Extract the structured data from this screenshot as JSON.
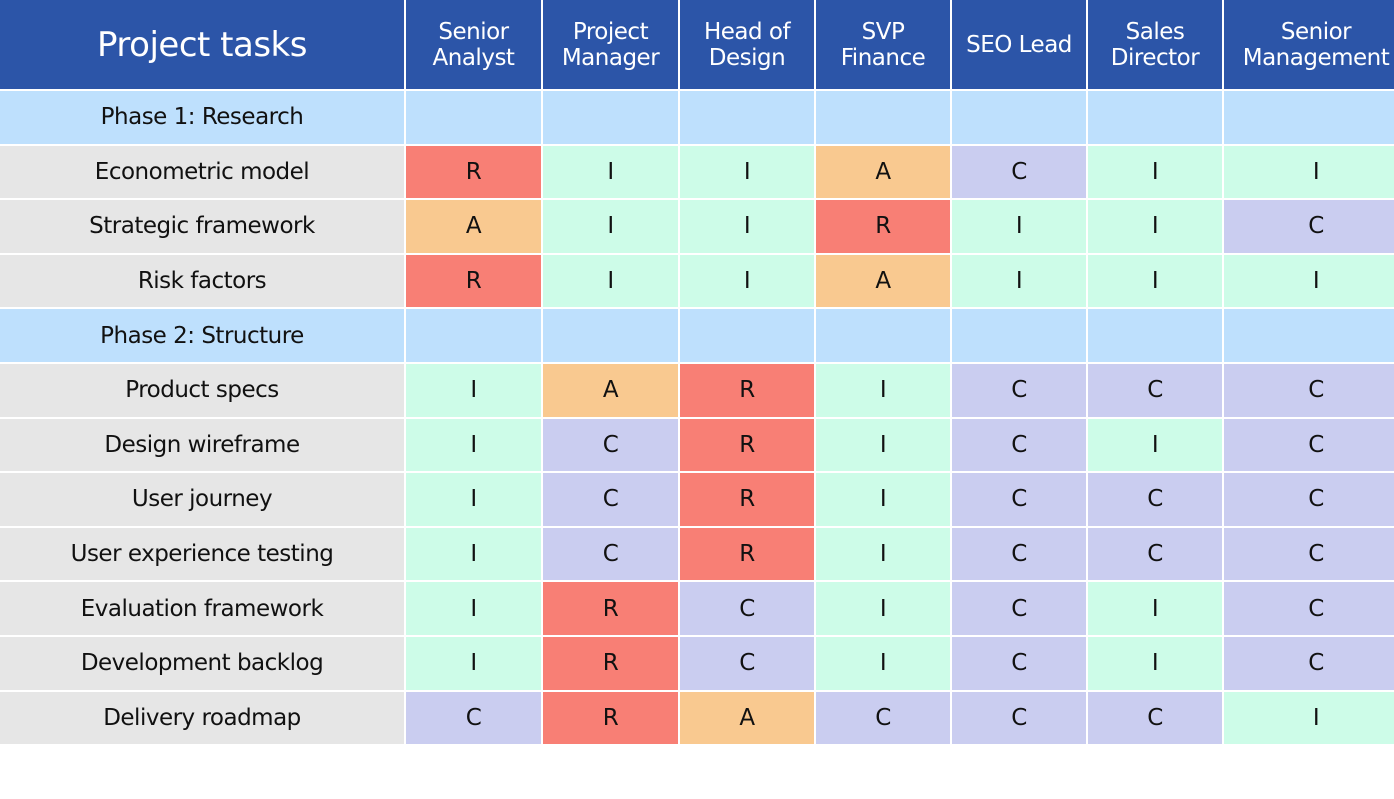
{
  "title": "Project tasks",
  "roles": [
    "Senior Analyst",
    "Project Manager",
    "Head of Design",
    "SVP Finance",
    "SEO Lead",
    "Sales Director",
    "Senior Management"
  ],
  "colors": {
    "header": "#2c55a8",
    "phase": "#bee0fd",
    "task": "#e6e6e6",
    "R": "#f87f75",
    "A": "#f9c990",
    "I": "#cdfce8",
    "C": "#cacdf0"
  },
  "rows": [
    {
      "phase": "Phase 1: Research"
    },
    {
      "task": "Econometric model",
      "values": [
        "R",
        "I",
        "I",
        "A",
        "C",
        "I",
        "I"
      ]
    },
    {
      "task": "Strategic framework",
      "values": [
        "A",
        "I",
        "I",
        "R",
        "I",
        "I",
        "C"
      ]
    },
    {
      "task": "Risk factors",
      "values": [
        "R",
        "I",
        "I",
        "A",
        "I",
        "I",
        "I"
      ]
    },
    {
      "phase": "Phase 2: Structure"
    },
    {
      "task": "Product specs",
      "values": [
        "I",
        "A",
        "R",
        "I",
        "C",
        "C",
        "C"
      ]
    },
    {
      "task": "Design wireframe",
      "values": [
        "I",
        "C",
        "R",
        "I",
        "C",
        "I",
        "C"
      ]
    },
    {
      "task": "User journey",
      "values": [
        "I",
        "C",
        "R",
        "I",
        "C",
        "C",
        "C"
      ]
    },
    {
      "task": "User experience testing",
      "values": [
        "I",
        "C",
        "R",
        "I",
        "C",
        "C",
        "C"
      ]
    },
    {
      "task": "Evaluation framework",
      "values": [
        "I",
        "R",
        "C",
        "I",
        "C",
        "I",
        "C"
      ]
    },
    {
      "task": "Development backlog",
      "values": [
        "I",
        "R",
        "C",
        "I",
        "C",
        "I",
        "C"
      ]
    },
    {
      "task": "Delivery roadmap",
      "values": [
        "C",
        "R",
        "A",
        "C",
        "C",
        "C",
        "I"
      ]
    }
  ]
}
